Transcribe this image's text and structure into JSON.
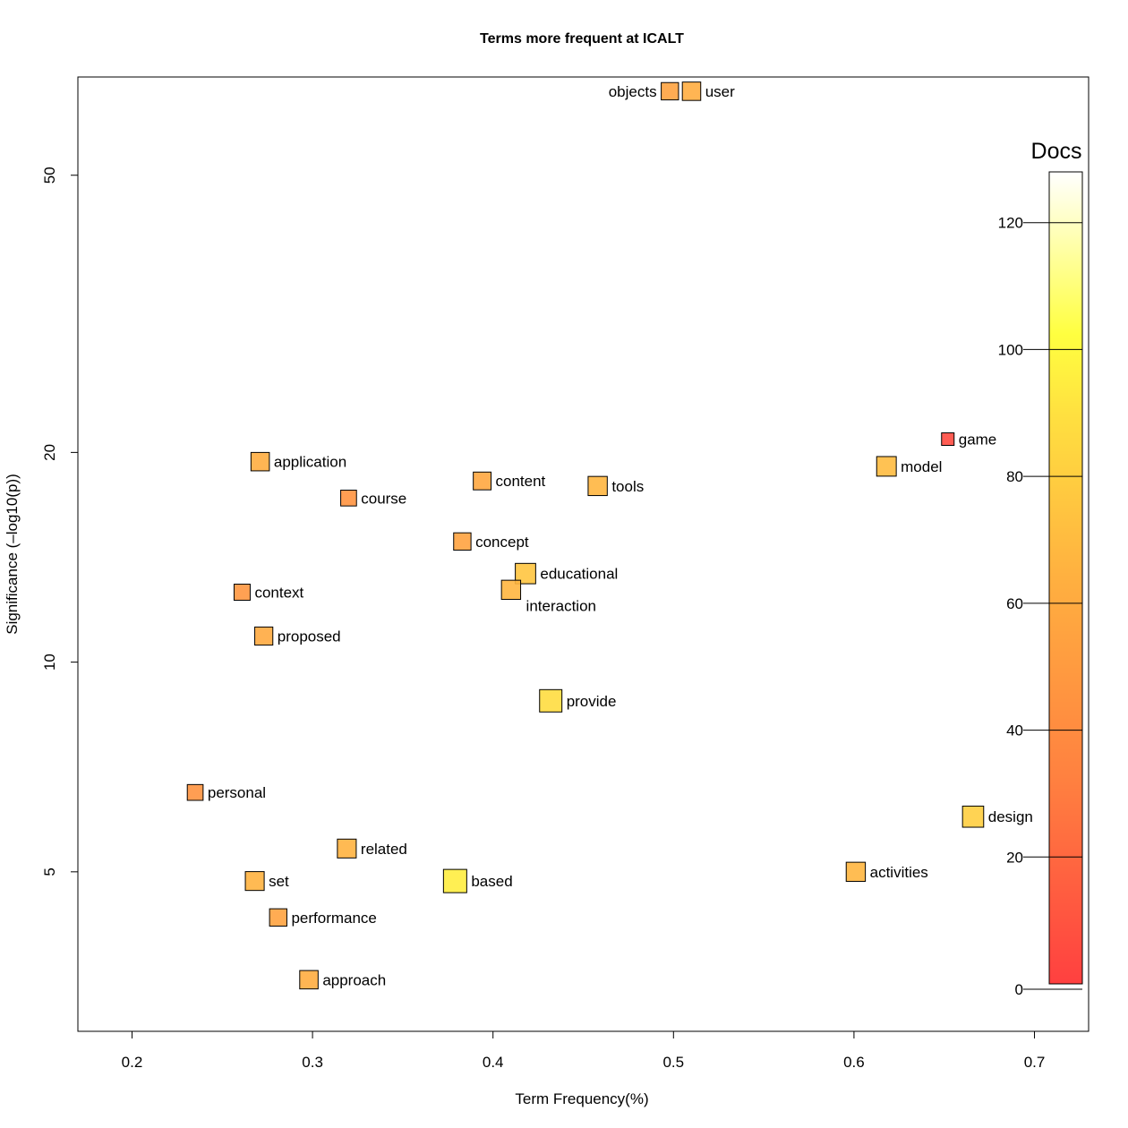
{
  "chart_data": {
    "type": "scatter",
    "title": "Terms more frequent at ICALT",
    "xlabel": "Term Frequency(%)",
    "ylabel": "Significance (–log10(p))",
    "y_scale": "log",
    "xlim": [
      0.17,
      0.73
    ],
    "ylim_log10": [
      0.47,
      1.84
    ],
    "x_ticks": [
      0.2,
      0.3,
      0.4,
      0.5,
      0.6,
      0.7
    ],
    "x_tick_labels": [
      "0.2",
      "0.3",
      "0.4",
      "0.5",
      "0.6",
      "0.7"
    ],
    "y_ticks": [
      5,
      10,
      20,
      50
    ],
    "y_tick_labels": [
      "5",
      "10",
      "20",
      "50"
    ],
    "color_legend": {
      "title": "Docs",
      "min": 0,
      "max": 128,
      "ticks": [
        0,
        20,
        40,
        60,
        80,
        100,
        120
      ],
      "tick_labels": [
        "0",
        "20",
        "40",
        "60",
        "80",
        "100",
        "120"
      ]
    },
    "points": [
      {
        "term": "objects",
        "x": 0.498,
        "y": 66.0,
        "docs": 55,
        "label_side": "left"
      },
      {
        "term": "user",
        "x": 0.51,
        "y": 66.0,
        "docs": 62,
        "label_side": "right"
      },
      {
        "term": "game",
        "x": 0.652,
        "y": 20.9,
        "docs": 5,
        "label_side": "right"
      },
      {
        "term": "model",
        "x": 0.618,
        "y": 19.1,
        "docs": 70,
        "label_side": "right"
      },
      {
        "term": "application",
        "x": 0.271,
        "y": 19.4,
        "docs": 62,
        "label_side": "right"
      },
      {
        "term": "content",
        "x": 0.394,
        "y": 18.2,
        "docs": 58,
        "label_side": "right"
      },
      {
        "term": "tools",
        "x": 0.458,
        "y": 17.9,
        "docs": 67,
        "label_side": "right"
      },
      {
        "term": "course",
        "x": 0.32,
        "y": 17.2,
        "docs": 45,
        "label_side": "right"
      },
      {
        "term": "concept",
        "x": 0.383,
        "y": 14.9,
        "docs": 55,
        "label_side": "right"
      },
      {
        "term": "educational",
        "x": 0.418,
        "y": 13.4,
        "docs": 75,
        "label_side": "right"
      },
      {
        "term": "interaction",
        "x": 0.41,
        "y": 12.7,
        "docs": 67,
        "label_side": "below-right"
      },
      {
        "term": "context",
        "x": 0.261,
        "y": 12.6,
        "docs": 47,
        "label_side": "right"
      },
      {
        "term": "proposed",
        "x": 0.273,
        "y": 10.9,
        "docs": 60,
        "label_side": "right"
      },
      {
        "term": "provide",
        "x": 0.432,
        "y": 8.8,
        "docs": 88,
        "label_side": "right"
      },
      {
        "term": "personal",
        "x": 0.235,
        "y": 6.5,
        "docs": 45,
        "label_side": "right"
      },
      {
        "term": "design",
        "x": 0.666,
        "y": 6.0,
        "docs": 80,
        "label_side": "right"
      },
      {
        "term": "related",
        "x": 0.319,
        "y": 5.4,
        "docs": 65,
        "label_side": "right"
      },
      {
        "term": "activities",
        "x": 0.601,
        "y": 5.0,
        "docs": 67,
        "label_side": "right"
      },
      {
        "term": "set",
        "x": 0.268,
        "y": 4.85,
        "docs": 65,
        "label_side": "right"
      },
      {
        "term": "based",
        "x": 0.379,
        "y": 4.85,
        "docs": 95,
        "label_side": "right"
      },
      {
        "term": "performance",
        "x": 0.281,
        "y": 4.3,
        "docs": 55,
        "label_side": "right"
      },
      {
        "term": "approach",
        "x": 0.298,
        "y": 3.5,
        "docs": 62,
        "label_side": "right"
      }
    ]
  }
}
